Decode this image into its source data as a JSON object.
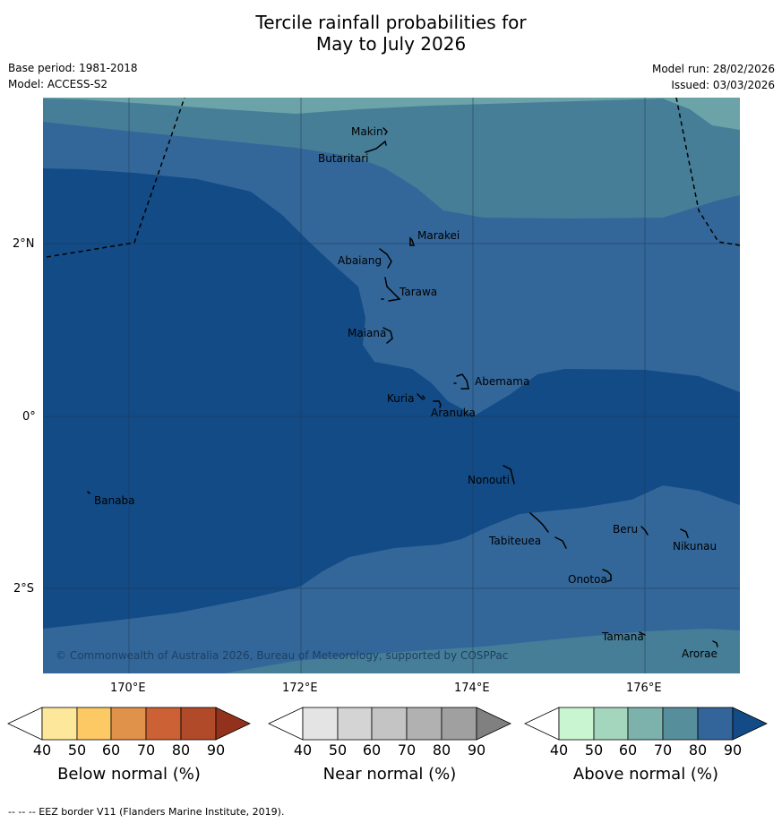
{
  "title": {
    "line1": "Tercile rainfall probabilities for",
    "line2": "May to July 2026"
  },
  "meta": {
    "base_period": "Base period: 1981-2018",
    "model": "Model: ACCESS-S2",
    "model_run": "Model run: 28/02/2026",
    "issued": "Issued: 03/03/2026"
  },
  "map": {
    "lat_labels": [
      "2°N",
      "0°",
      "2°S"
    ],
    "lon_labels": [
      "170°E",
      "172°E",
      "174°E",
      "176°E"
    ],
    "credit": "© Commonwealth of Australia 2026, Bureau of Meteorology, supported by COSPPac",
    "islands": [
      {
        "name": "Makin"
      },
      {
        "name": "Butaritari"
      },
      {
        "name": "Marakei"
      },
      {
        "name": "Abaiang"
      },
      {
        "name": "Tarawa"
      },
      {
        "name": "Maiana"
      },
      {
        "name": "Abemama"
      },
      {
        "name": "Kuria"
      },
      {
        "name": "Aranuka"
      },
      {
        "name": "Nonouti"
      },
      {
        "name": "Banaba"
      },
      {
        "name": "Tabiteuea"
      },
      {
        "name": "Beru"
      },
      {
        "name": "Nikunau"
      },
      {
        "name": "Onotoa"
      },
      {
        "name": "Tamana"
      },
      {
        "name": "Arorae"
      }
    ],
    "colors": {
      "above_50": "#6ba3a8",
      "above_60": "#467e98",
      "above_70": "#33679a",
      "above_80": "#124b86",
      "grid": "#1f3a52",
      "eez": "#000000"
    }
  },
  "colorbars": [
    {
      "title": "Below normal (%)",
      "ticks": [
        "40",
        "50",
        "60",
        "70",
        "80",
        "90"
      ],
      "colors": [
        "#ffffff",
        "#fde79b",
        "#fdc965",
        "#e0924a",
        "#cb6134",
        "#b04a28",
        "#93321c"
      ]
    },
    {
      "title": "Near normal (%)",
      "ticks": [
        "40",
        "50",
        "60",
        "70",
        "80",
        "90"
      ],
      "colors": [
        "#ffffff",
        "#e4e4e4",
        "#d4d4d4",
        "#c4c4c4",
        "#b1b1b1",
        "#a0a0a0",
        "#808080"
      ]
    },
    {
      "title": "Above normal (%)",
      "ticks": [
        "40",
        "50",
        "60",
        "70",
        "80",
        "90"
      ],
      "colors": [
        "#ffffff",
        "#c9f5d1",
        "#a4d5bd",
        "#7cb1ac",
        "#578e9c",
        "#33649a",
        "#124b86"
      ]
    }
  ],
  "footnote": "--  --  -- EEZ border V11 (Flanders Marine Institute, 2019)."
}
